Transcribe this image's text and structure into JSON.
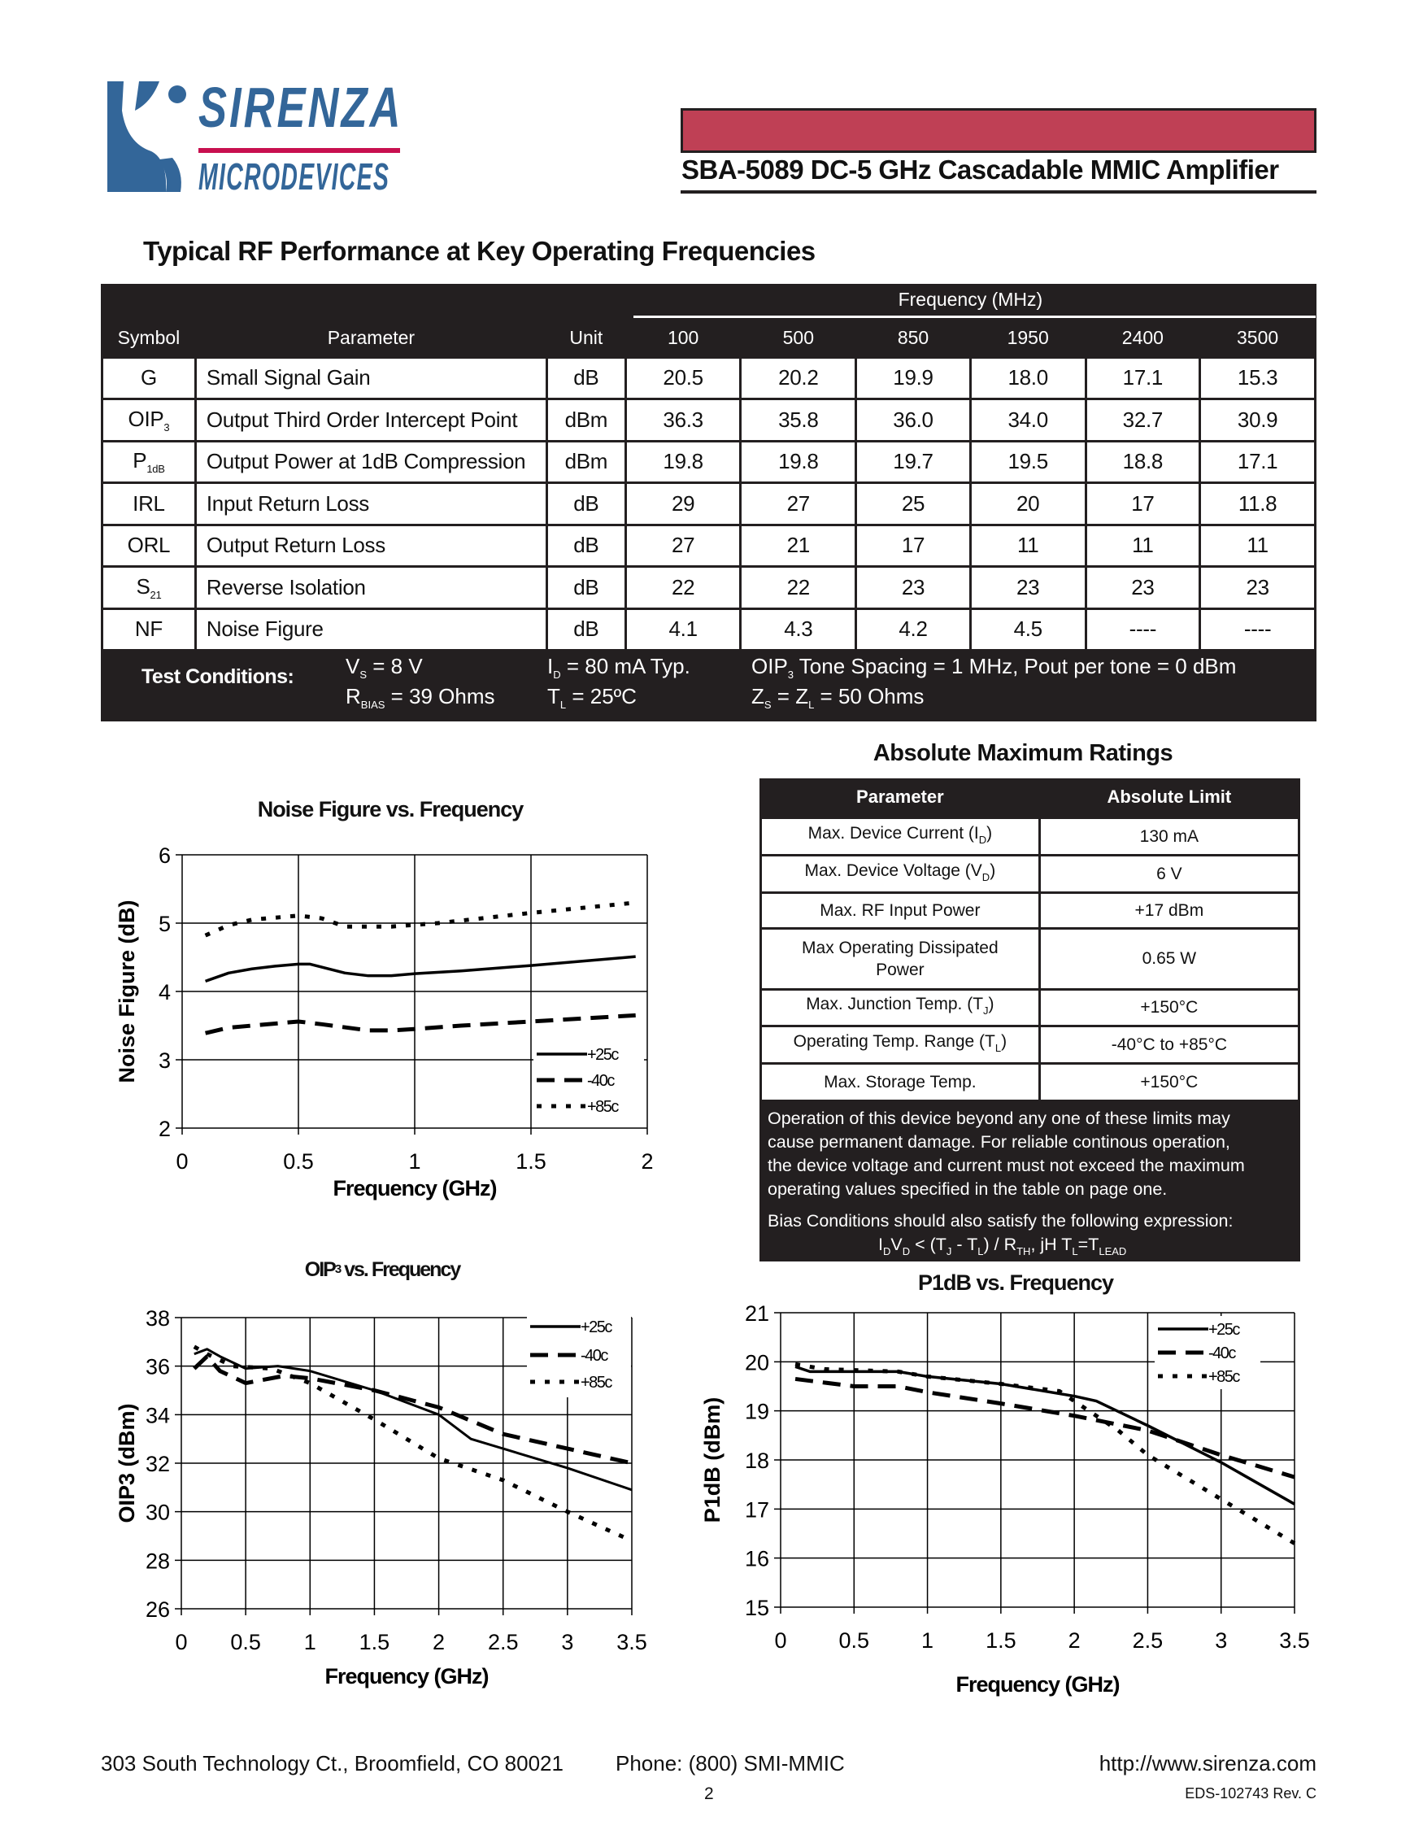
{
  "header": {
    "logo": {
      "line1": "SIRENZA",
      "line2": "MICRODEVICES"
    },
    "banner_color": "#bf4055",
    "title": "SBA-5089 DC-5 GHz Cascadable MMIC Amplifier"
  },
  "rf_section": {
    "title": "Typical RF Performance at Key Operating Frequencies",
    "headers": {
      "symbol": "Symbol",
      "parameter": "Parameter",
      "unit": "Unit",
      "frequency": "Frequency (MHz)",
      "freqs": [
        "100",
        "500",
        "850",
        "1950",
        "2400",
        "3500"
      ]
    },
    "rows": [
      {
        "symbol": [
          [
            "G"
          ]
        ],
        "parameter": "Small Signal Gain",
        "unit": "dB",
        "values": [
          "20.5",
          "20.2",
          "19.9",
          "18.0",
          "17.1",
          "15.3"
        ]
      },
      {
        "symbol": [
          [
            "OIP"
          ],
          [
            "3",
            1
          ]
        ],
        "parameter": "Output Third Order Intercept Point",
        "unit": "dBm",
        "values": [
          "36.3",
          "35.8",
          "36.0",
          "34.0",
          "32.7",
          "30.9"
        ]
      },
      {
        "symbol": [
          [
            "P"
          ],
          [
            "1dB",
            1
          ]
        ],
        "parameter": "Output Power at 1dB Compression",
        "unit": "dBm",
        "values": [
          "19.8",
          "19.8",
          "19.7",
          "19.5",
          "18.8",
          "17.1"
        ]
      },
      {
        "symbol": [
          [
            "IRL"
          ]
        ],
        "parameter": "Input Return Loss",
        "unit": "dB",
        "values": [
          "29",
          "27",
          "25",
          "20",
          "17",
          "11.8"
        ]
      },
      {
        "symbol": [
          [
            "ORL"
          ]
        ],
        "parameter": "Output Return Loss",
        "unit": "dB",
        "values": [
          "27",
          "21",
          "17",
          "11",
          "11",
          "11"
        ]
      },
      {
        "symbol": [
          [
            "S"
          ],
          [
            "21",
            1
          ]
        ],
        "parameter": "Reverse Isolation",
        "unit": "dB",
        "values": [
          "22",
          "22",
          "23",
          "23",
          "23",
          "23"
        ]
      },
      {
        "symbol": [
          [
            "NF"
          ]
        ],
        "parameter": "Noise Figure",
        "unit": "dB",
        "values": [
          "4.1",
          "4.3",
          "4.2",
          "4.5",
          "----",
          "----"
        ]
      }
    ],
    "test_conditions": {
      "label": "Test Conditions:",
      "vs": [
        [
          "V"
        ],
        [
          "S",
          1
        ],
        [
          " = 8 V"
        ]
      ],
      "rbias": [
        [
          "R"
        ],
        [
          "BIAS",
          1
        ],
        [
          " = 39 Ohms"
        ]
      ],
      "id": [
        [
          "I"
        ],
        [
          "D",
          1
        ],
        [
          " = 80 mA  Typ."
        ]
      ],
      "tl": [
        [
          "T"
        ],
        [
          "L",
          1
        ],
        [
          " = 25ºC"
        ]
      ],
      "oip3": [
        [
          "OIP"
        ],
        [
          "3",
          1
        ],
        [
          " Tone Spacing = 1 MHz,  Pout per tone = 0 dBm"
        ]
      ],
      "z": [
        [
          "Z"
        ],
        [
          "S",
          1
        ],
        [
          " = Z"
        ],
        [
          "L",
          1
        ],
        [
          " = 50 Ohms"
        ]
      ]
    }
  },
  "abs_max": {
    "title": "Absolute Maximum Ratings",
    "headers": {
      "parameter": "Parameter",
      "limit": "Absolute Limit"
    },
    "rows": [
      {
        "parameter": [
          [
            "Max. Device Current (I"
          ],
          [
            "D",
            1
          ],
          [
            ")"
          ]
        ],
        "limit": "130 mA"
      },
      {
        "parameter": [
          [
            "Max. Device Voltage (V"
          ],
          [
            "D",
            1
          ],
          [
            ")"
          ]
        ],
        "limit": "6 V"
      },
      {
        "parameter": [
          [
            "Max. RF Input Power"
          ]
        ],
        "limit": "+17 dBm"
      },
      {
        "parameter": [
          [
            "Max Operating Dissipated Power"
          ]
        ],
        "limit": "0.65 W"
      },
      {
        "parameter": [
          [
            "Max. Junction Temp. (T"
          ],
          [
            "J",
            1
          ],
          [
            ")"
          ]
        ],
        "limit": "+150°C"
      },
      {
        "parameter": [
          [
            "Operating Temp. Range (T"
          ],
          [
            "L",
            1
          ],
          [
            ")"
          ]
        ],
        "limit": "-40°C to +85°C"
      },
      {
        "parameter": [
          [
            "Max. Storage Temp."
          ]
        ],
        "limit": "+150°C"
      }
    ],
    "note_lines": [
      "Operation of this device beyond any one of these limits may",
      "cause permanent damage.  For reliable continous operation,",
      "the device voltage and current must not exceed the maximum",
      "operating values specified in the table on page one.",
      "Bias Conditions should also satisfy the following expression:"
    ],
    "expression": [
      [
        "I"
      ],
      [
        "D",
        1
      ],
      [
        "V"
      ],
      [
        "D",
        1
      ],
      [
        " < (T"
      ],
      [
        "J",
        1
      ],
      [
        " - T"
      ],
      [
        "L",
        1
      ],
      [
        ") / R"
      ],
      [
        "TH",
        1
      ],
      [
        ", jH        T"
      ],
      [
        "L",
        1
      ],
      [
        "=T"
      ],
      [
        "LEAD",
        1
      ]
    ]
  },
  "chart_data": [
    {
      "id": "nf",
      "type": "line",
      "title": "Noise Figure vs. Frequency",
      "xlabel": "Frequency (GHz)",
      "ylabel": "Noise Figure (dB)",
      "xlim": [
        0,
        2
      ],
      "ylim": [
        2,
        6
      ],
      "xticks": [
        "0",
        "0.5",
        "1",
        "1.5",
        "2"
      ],
      "yticks": [
        "2",
        "3",
        "4",
        "5",
        "6"
      ],
      "grid": true,
      "legend": "bottom-right",
      "series": [
        {
          "name": "+25c",
          "style": "solid",
          "points": [
            [
              0.1,
              4.15
            ],
            [
              0.2,
              4.27
            ],
            [
              0.3,
              4.33
            ],
            [
              0.4,
              4.37
            ],
            [
              0.5,
              4.4
            ],
            [
              0.55,
              4.4
            ],
            [
              0.7,
              4.27
            ],
            [
              0.8,
              4.23
            ],
            [
              0.9,
              4.23
            ],
            [
              1.0,
              4.26
            ],
            [
              1.2,
              4.3
            ],
            [
              1.5,
              4.38
            ],
            [
              1.95,
              4.51
            ]
          ]
        },
        {
          "name": "-40c",
          "style": "dash",
          "points": [
            [
              0.1,
              3.39
            ],
            [
              0.2,
              3.47
            ],
            [
              0.3,
              3.5
            ],
            [
              0.5,
              3.56
            ],
            [
              0.6,
              3.52
            ],
            [
              0.8,
              3.43
            ],
            [
              0.9,
              3.43
            ],
            [
              1.0,
              3.45
            ],
            [
              1.2,
              3.5
            ],
            [
              1.5,
              3.56
            ],
            [
              1.95,
              3.65
            ]
          ]
        },
        {
          "name": "+85c",
          "style": "dot",
          "points": [
            [
              0.1,
              4.82
            ],
            [
              0.2,
              4.97
            ],
            [
              0.3,
              5.05
            ],
            [
              0.5,
              5.11
            ],
            [
              0.6,
              5.07
            ],
            [
              0.7,
              4.95
            ],
            [
              0.9,
              4.95
            ],
            [
              1.1,
              5.0
            ],
            [
              1.5,
              5.15
            ],
            [
              1.95,
              5.3
            ]
          ]
        }
      ]
    },
    {
      "id": "oip3",
      "type": "line",
      "title": "OIP3 vs. Frequency",
      "xlabel": "Frequency (GHz)",
      "ylabel": "OIP3 (dBm)",
      "xlim": [
        0,
        3.5
      ],
      "ylim": [
        26,
        38
      ],
      "xticks": [
        "0",
        "0.5",
        "1",
        "1.5",
        "2",
        "2.5",
        "3",
        "3.5"
      ],
      "yticks": [
        "26",
        "28",
        "30",
        "32",
        "34",
        "36",
        "38"
      ],
      "grid": true,
      "legend": "top-right",
      "series": [
        {
          "name": "+25c",
          "style": "solid",
          "points": [
            [
              0.1,
              36.5
            ],
            [
              0.2,
              36.7
            ],
            [
              0.3,
              36.4
            ],
            [
              0.5,
              35.9
            ],
            [
              0.75,
              36.0
            ],
            [
              1.0,
              35.8
            ],
            [
              1.5,
              35.0
            ],
            [
              2.0,
              34.0
            ],
            [
              2.25,
              33.0
            ],
            [
              2.5,
              32.6
            ],
            [
              3.0,
              31.8
            ],
            [
              3.5,
              30.9
            ]
          ]
        },
        {
          "name": "-40c",
          "style": "dash",
          "points": [
            [
              0.1,
              35.9
            ],
            [
              0.2,
              36.4
            ],
            [
              0.3,
              35.8
            ],
            [
              0.5,
              35.3
            ],
            [
              0.8,
              35.6
            ],
            [
              1.0,
              35.5
            ],
            [
              1.5,
              35.0
            ],
            [
              2.0,
              34.3
            ],
            [
              2.5,
              33.2
            ],
            [
              3.0,
              32.6
            ],
            [
              3.5,
              32.0
            ]
          ]
        },
        {
          "name": "+85c",
          "style": "dot",
          "points": [
            [
              0.1,
              36.8
            ],
            [
              0.2,
              36.5
            ],
            [
              0.4,
              36.0
            ],
            [
              0.7,
              35.9
            ],
            [
              1.0,
              35.3
            ],
            [
              1.5,
              33.8
            ],
            [
              2.0,
              32.2
            ],
            [
              2.5,
              31.3
            ],
            [
              3.0,
              30.0
            ],
            [
              3.5,
              28.8
            ]
          ]
        }
      ]
    },
    {
      "id": "p1db",
      "type": "line",
      "title": "P1dB vs. Frequency",
      "xlabel": "Frequency (GHz)",
      "ylabel": "P1dB (dBm)",
      "xlim": [
        0,
        3.5
      ],
      "ylim": [
        15,
        21
      ],
      "xticks": [
        "0",
        "0.5",
        "1",
        "1.5",
        "2",
        "2.5",
        "3",
        "3.5"
      ],
      "yticks": [
        "15",
        "16",
        "17",
        "18",
        "19",
        "20",
        "21"
      ],
      "grid": true,
      "legend": "top-right",
      "series": [
        {
          "name": "+25c",
          "style": "solid",
          "points": [
            [
              0.1,
              19.9
            ],
            [
              0.2,
              19.8
            ],
            [
              0.8,
              19.8
            ],
            [
              1.0,
              19.7
            ],
            [
              1.5,
              19.55
            ],
            [
              2.0,
              19.3
            ],
            [
              2.15,
              19.2
            ],
            [
              2.5,
              18.7
            ],
            [
              3.0,
              17.95
            ],
            [
              3.5,
              17.1
            ]
          ]
        },
        {
          "name": "-40c",
          "style": "dash",
          "points": [
            [
              0.1,
              19.65
            ],
            [
              0.5,
              19.5
            ],
            [
              0.8,
              19.5
            ],
            [
              1.0,
              19.38
            ],
            [
              1.5,
              19.15
            ],
            [
              2.0,
              18.9
            ],
            [
              2.5,
              18.6
            ],
            [
              3.0,
              18.1
            ],
            [
              3.5,
              17.65
            ]
          ]
        },
        {
          "name": "+85c",
          "style": "dot",
          "points": [
            [
              0.1,
              19.95
            ],
            [
              0.3,
              19.85
            ],
            [
              0.8,
              19.8
            ],
            [
              1.0,
              19.7
            ],
            [
              1.5,
              19.55
            ],
            [
              1.9,
              19.4
            ],
            [
              2.1,
              19.0
            ],
            [
              2.3,
              18.6
            ],
            [
              2.5,
              18.1
            ],
            [
              3.0,
              17.2
            ],
            [
              3.5,
              16.3
            ]
          ]
        }
      ]
    }
  ],
  "footer": {
    "address": "303 South Technology Ct., Broomfield, CO 80021",
    "phone": "Phone: (800) SMI-MMIC",
    "url": "http://www.sirenza.com",
    "doc_id": "EDS-102743  Rev. C",
    "page": "2"
  }
}
